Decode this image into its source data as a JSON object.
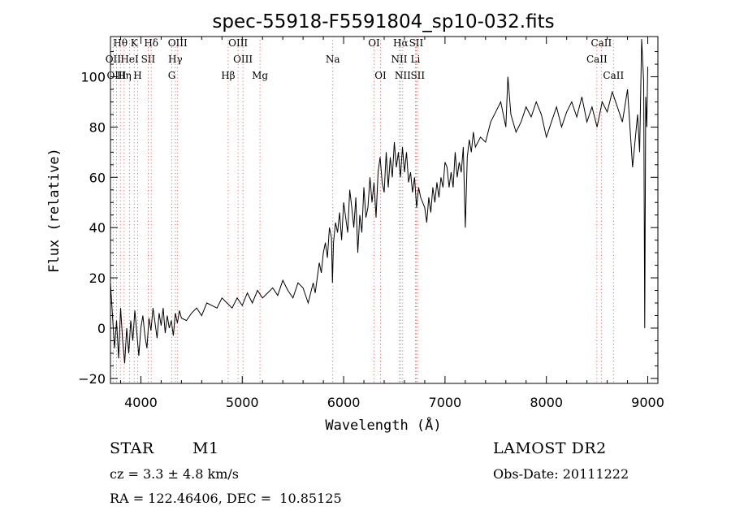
{
  "chart_data": {
    "type": "line",
    "title": "spec-55918-F5591804_sp10-032.fits",
    "xlabel": "Wavelength (Å)",
    "ylabel": "Flux (relative)",
    "xlim": [
      3700,
      9100
    ],
    "ylim": [
      -22,
      116
    ],
    "xticks": [
      4000,
      5000,
      6000,
      7000,
      8000,
      9000
    ],
    "yticks": [
      -20,
      0,
      20,
      40,
      60,
      80,
      100
    ],
    "grid": false,
    "series": [
      {
        "x": [
          3700,
          3720,
          3740,
          3760,
          3780,
          3800,
          3820,
          3840,
          3860,
          3880,
          3900,
          3920,
          3940,
          3960,
          3980,
          4000,
          4020,
          4040,
          4060,
          4080,
          4100,
          4120,
          4140,
          4160,
          4180,
          4200,
          4220,
          4240,
          4260,
          4280,
          4300,
          4320,
          4340,
          4360,
          4380,
          4400,
          4450,
          4500,
          4550,
          4600,
          4650,
          4700,
          4750,
          4800,
          4850,
          4900,
          4950,
          5000,
          5050,
          5100,
          5150,
          5200,
          5250,
          5300,
          5350,
          5400,
          5450,
          5500,
          5550,
          5600,
          5650,
          5700,
          5720,
          5740,
          5760,
          5780,
          5800,
          5820,
          5840,
          5860,
          5880,
          5890,
          5900,
          5920,
          5940,
          5960,
          5980,
          6000,
          6020,
          6040,
          6060,
          6080,
          6100,
          6120,
          6140,
          6160,
          6180,
          6200,
          6220,
          6240,
          6260,
          6280,
          6300,
          6320,
          6340,
          6360,
          6380,
          6400,
          6420,
          6440,
          6460,
          6480,
          6500,
          6520,
          6540,
          6560,
          6580,
          6600,
          6620,
          6640,
          6660,
          6680,
          6700,
          6720,
          6740,
          6760,
          6780,
          6800,
          6820,
          6840,
          6860,
          6880,
          6900,
          6920,
          6940,
          6960,
          6980,
          7000,
          7020,
          7040,
          7060,
          7080,
          7100,
          7120,
          7140,
          7160,
          7180,
          7200,
          7220,
          7240,
          7260,
          7280,
          7300,
          7350,
          7400,
          7450,
          7500,
          7550,
          7600,
          7620,
          7650,
          7700,
          7750,
          7800,
          7850,
          7900,
          7950,
          8000,
          8050,
          8100,
          8150,
          8200,
          8250,
          8300,
          8350,
          8400,
          8450,
          8500,
          8550,
          8600,
          8650,
          8700,
          8750,
          8800,
          8850,
          8900,
          8920,
          8940,
          8960,
          8970,
          8980,
          8990,
          9000
        ],
        "y": [
          18,
          5,
          -8,
          3,
          -12,
          8,
          -5,
          -14,
          0,
          -10,
          3,
          -5,
          7,
          -2,
          -11,
          0,
          5,
          -3,
          -8,
          4,
          -1,
          8,
          2,
          -4,
          6,
          1,
          8,
          -2,
          5,
          0,
          3,
          -3,
          6,
          2,
          7,
          4,
          3,
          6,
          8,
          5,
          10,
          9,
          8,
          12,
          10,
          8,
          12,
          9,
          14,
          10,
          15,
          12,
          14,
          16,
          13,
          19,
          15,
          12,
          18,
          16,
          10,
          18,
          14,
          20,
          26,
          22,
          30,
          34,
          28,
          40,
          36,
          18,
          34,
          42,
          38,
          46,
          35,
          50,
          44,
          38,
          55,
          48,
          40,
          52,
          30,
          45,
          38,
          56,
          44,
          48,
          60,
          50,
          58,
          44,
          62,
          68,
          58,
          54,
          70,
          56,
          68,
          60,
          74,
          64,
          70,
          60,
          72,
          62,
          70,
          58,
          62,
          54,
          60,
          48,
          56,
          52,
          50,
          48,
          42,
          52,
          46,
          56,
          50,
          58,
          52,
          60,
          56,
          66,
          64,
          56,
          62,
          56,
          70,
          60,
          66,
          62,
          72,
          40,
          68,
          75,
          70,
          78,
          72,
          76,
          74,
          82,
          86,
          90,
          80,
          100,
          85,
          78,
          82,
          88,
          84,
          90,
          85,
          76,
          82,
          88,
          80,
          86,
          90,
          84,
          92,
          82,
          88,
          80,
          90,
          86,
          94,
          88,
          82,
          95,
          64,
          85,
          70,
          115,
          98,
          0,
          92,
          80,
          104
        ]
      }
    ],
    "lines": {
      "set1": [
        {
          "label": "Hθ",
          "x": 3798
        },
        {
          "label": "K",
          "x": 3934
        },
        {
          "label": "Hδ",
          "x": 4102
        },
        {
          "label": "OIII",
          "x": 4363
        },
        {
          "label": "OIII",
          "x": 4959
        },
        {
          "label": "OI",
          "x": 6300
        },
        {
          "label": "Hα",
          "x": 6563
        },
        {
          "label": "SII",
          "x": 6716
        },
        {
          "label": "CaII",
          "x": 8542
        }
      ],
      "set2": [
        {
          "label": "OII",
          "x": 3727
        },
        {
          "label": "HeI",
          "x": 3889
        },
        {
          "label": "SII",
          "x": 4072
        },
        {
          "label": "Hγ",
          "x": 4340
        },
        {
          "label": "OIII",
          "x": 5007
        },
        {
          "label": "Na",
          "x": 5893
        },
        {
          "label": "NII",
          "x": 6548
        },
        {
          "label": "Li",
          "x": 6708
        },
        {
          "label": "CaII",
          "x": 8498
        }
      ],
      "set3": [
        {
          "label": "OIII",
          "x": 3760
        },
        {
          "label": "Hη",
          "x": 3835
        },
        {
          "label": "H",
          "x": 3968
        },
        {
          "label": "G",
          "x": 4305
        },
        {
          "label": "Hβ",
          "x": 4861
        },
        {
          "label": "Mg",
          "x": 5175
        },
        {
          "label": "OI",
          "x": 6364
        },
        {
          "label": "NII",
          "x": 6583
        },
        {
          "label": "SII",
          "x": 6731
        },
        {
          "label": "CaII",
          "x": 8662
        }
      ]
    }
  },
  "info": {
    "star_label": "STAR",
    "class_label": "M1",
    "survey": "LAMOST DR2",
    "cz": "cz = 3.3 ± 4.8 km/s",
    "obs_date": "Obs-Date: 20111222",
    "coords": "RA = 122.46406, DEC =  10.85125"
  }
}
